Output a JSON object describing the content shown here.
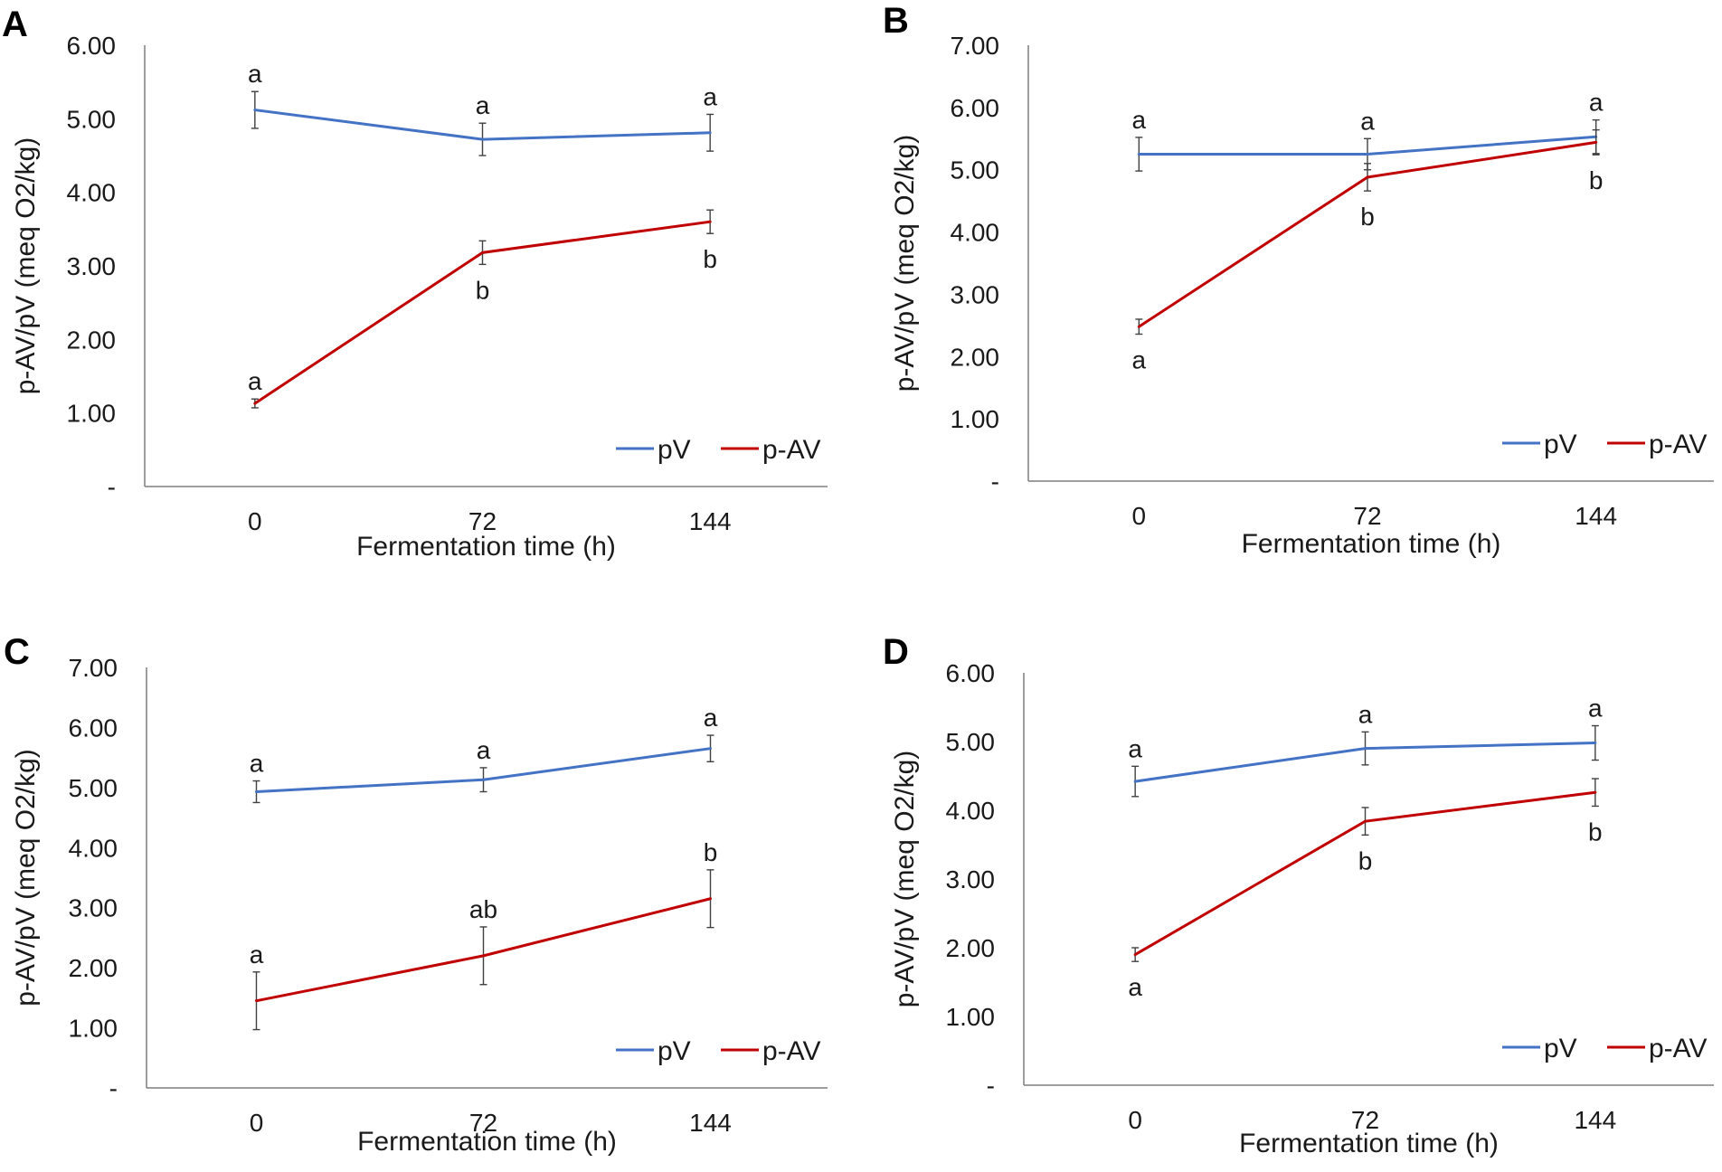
{
  "colors": {
    "pV": "#4472C4",
    "pAV": "#C00000",
    "axis": "#7f7f7f",
    "errorbar": "#404040"
  },
  "chart_data": [
    {
      "panel": "A",
      "type": "line",
      "categories": [
        "0",
        "72",
        "144"
      ],
      "xlabel": "Fermentation time (h)",
      "ylabel": "p-AV/pV (meq O2/kg)",
      "ylim": [
        0,
        6
      ],
      "yticks": [
        "-",
        "1.00",
        "2.00",
        "3.00",
        "4.00",
        "5.00",
        "6.00"
      ],
      "legend_position": "bottom-right",
      "series": [
        {
          "name": "pV",
          "color": "#4472C4",
          "values": [
            5.12,
            4.72,
            4.81
          ],
          "errors": [
            0.25,
            0.22,
            0.25
          ],
          "letters": [
            "a",
            "a",
            "a"
          ]
        },
        {
          "name": "p-AV",
          "color": "#C00000",
          "values": [
            1.13,
            3.18,
            3.6
          ],
          "errors": [
            0.06,
            0.16,
            0.16
          ],
          "letters": [
            "a",
            "b",
            "b"
          ]
        }
      ]
    },
    {
      "panel": "B",
      "type": "line",
      "categories": [
        "0",
        "72",
        "144"
      ],
      "xlabel": "Fermentation time (h)",
      "ylabel": "p-AV/pV (meq O2/kg)",
      "ylim": [
        0,
        7
      ],
      "yticks": [
        "-",
        "1.00",
        "2.00",
        "3.00",
        "4.00",
        "5.00",
        "6.00",
        "7.00"
      ],
      "legend_position": "bottom-right",
      "series": [
        {
          "name": "pV",
          "color": "#4472C4",
          "values": [
            5.25,
            5.25,
            5.53
          ],
          "errors": [
            0.27,
            0.25,
            0.27
          ],
          "letters": [
            "a",
            "a",
            "a"
          ]
        },
        {
          "name": "p-AV",
          "color": "#C00000",
          "values": [
            2.48,
            4.88,
            5.44
          ],
          "errors": [
            0.12,
            0.22,
            0.2
          ],
          "letters": [
            "a",
            "b",
            "b"
          ]
        }
      ]
    },
    {
      "panel": "C",
      "type": "line",
      "categories": [
        "0",
        "72",
        "144"
      ],
      "xlabel": "Fermentation time (h)",
      "ylabel": "p-AV/pV (meq O2/kg)",
      "ylim": [
        0,
        7
      ],
      "yticks": [
        "-",
        "1.00",
        "2.00",
        "3.00",
        "4.00",
        "5.00",
        "6.00",
        "7.00"
      ],
      "legend_position": "bottom-right",
      "series": [
        {
          "name": "pV",
          "color": "#4472C4",
          "values": [
            4.93,
            5.13,
            5.65
          ],
          "errors": [
            0.18,
            0.2,
            0.22
          ],
          "letters": [
            "a",
            "a",
            "a"
          ]
        },
        {
          "name": "p-AV",
          "color": "#C00000",
          "values": [
            1.45,
            2.2,
            3.15
          ],
          "errors": [
            0.48,
            0.48,
            0.48
          ],
          "letters": [
            "a",
            "ab",
            "b"
          ]
        }
      ]
    },
    {
      "panel": "D",
      "type": "line",
      "categories": [
        "0",
        "72",
        "144"
      ],
      "xlabel": "Fermentation time (h)",
      "ylabel": "p-AV/pV (meq O2/kg)",
      "ylim": [
        0,
        6
      ],
      "yticks": [
        "-",
        "1.00",
        "2.00",
        "3.00",
        "4.00",
        "5.00",
        "6.00"
      ],
      "legend_position": "bottom-right",
      "series": [
        {
          "name": "pV",
          "color": "#4472C4",
          "values": [
            4.42,
            4.9,
            4.98
          ],
          "errors": [
            0.22,
            0.24,
            0.25
          ],
          "letters": [
            "a",
            "a",
            "a"
          ]
        },
        {
          "name": "p-AV",
          "color": "#C00000",
          "values": [
            1.9,
            3.84,
            4.26
          ],
          "errors": [
            0.1,
            0.2,
            0.2
          ],
          "letters": [
            "a",
            "b",
            "b"
          ]
        }
      ]
    }
  ]
}
